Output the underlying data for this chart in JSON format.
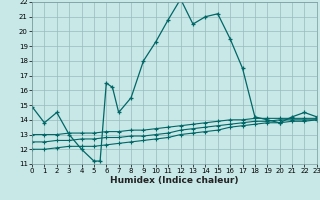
{
  "xlabel": "Humidex (Indice chaleur)",
  "bg_color": "#c8e8e8",
  "grid_color": "#99bbbb",
  "line_color": "#006666",
  "xmin": 0,
  "xmax": 23,
  "ymin": 11,
  "ymax": 22,
  "line1_x": [
    0,
    1,
    2,
    3,
    4,
    5,
    5.5,
    6,
    6.5,
    7,
    8,
    9,
    10,
    11,
    12,
    13,
    14,
    15,
    16,
    17,
    18,
    19,
    20,
    21,
    22,
    23
  ],
  "line1_y": [
    14.9,
    13.8,
    14.5,
    13.0,
    12.0,
    11.2,
    11.2,
    16.5,
    16.2,
    14.5,
    15.5,
    18.0,
    19.3,
    20.8,
    22.2,
    20.5,
    21.0,
    21.2,
    19.5,
    17.5,
    14.2,
    14.0,
    13.8,
    14.2,
    14.5,
    14.2
  ],
  "line2_x": [
    0,
    1,
    2,
    3,
    4,
    5,
    6,
    7,
    8,
    9,
    10,
    11,
    12,
    13,
    14,
    15,
    16,
    17,
    18,
    19,
    20,
    21,
    22,
    23
  ],
  "line2_y": [
    13.0,
    13.0,
    13.0,
    13.1,
    13.1,
    13.1,
    13.2,
    13.2,
    13.3,
    13.3,
    13.4,
    13.5,
    13.6,
    13.7,
    13.8,
    13.9,
    14.0,
    14.0,
    14.1,
    14.1,
    14.1,
    14.1,
    14.1,
    14.1
  ],
  "line3_x": [
    0,
    1,
    2,
    3,
    4,
    5,
    6,
    7,
    8,
    9,
    10,
    11,
    12,
    13,
    14,
    15,
    16,
    17,
    18,
    19,
    20,
    21,
    22,
    23
  ],
  "line3_y": [
    12.5,
    12.5,
    12.6,
    12.6,
    12.7,
    12.7,
    12.8,
    12.8,
    12.9,
    12.9,
    13.0,
    13.1,
    13.3,
    13.4,
    13.5,
    13.6,
    13.7,
    13.8,
    13.9,
    13.9,
    14.0,
    14.0,
    14.0,
    14.0
  ],
  "line4_x": [
    0,
    1,
    2,
    3,
    4,
    5,
    6,
    7,
    8,
    9,
    10,
    11,
    12,
    13,
    14,
    15,
    16,
    17,
    18,
    19,
    20,
    21,
    22,
    23
  ],
  "line4_y": [
    12.0,
    12.0,
    12.1,
    12.2,
    12.2,
    12.2,
    12.3,
    12.4,
    12.5,
    12.6,
    12.7,
    12.8,
    13.0,
    13.1,
    13.2,
    13.3,
    13.5,
    13.6,
    13.7,
    13.8,
    13.8,
    13.9,
    13.9,
    14.0
  ],
  "tick_fontsize": 5,
  "xlabel_fontsize": 6.5
}
